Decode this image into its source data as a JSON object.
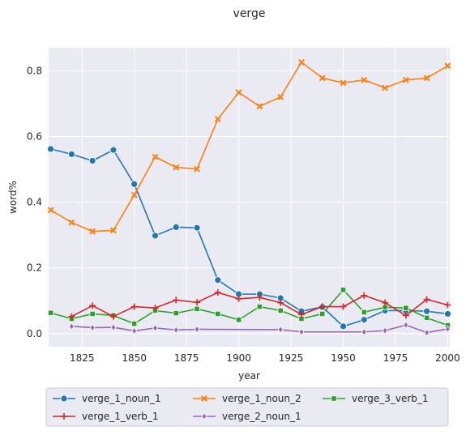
{
  "chart_data": {
    "type": "line",
    "title": "verge",
    "xlabel": "year",
    "ylabel": "word%",
    "xlim": [
      1809,
      2001
    ],
    "ylim": [
      -0.04,
      0.87
    ],
    "xticks": [
      1825,
      1850,
      1875,
      1900,
      1925,
      1950,
      1975,
      2000
    ],
    "yticks": [
      0.0,
      0.2,
      0.4,
      0.6,
      0.8
    ],
    "grid": true,
    "legend_position": "bottom-outside",
    "series": [
      {
        "name": "verge_1_noun_1",
        "color": "#1f77b4",
        "marker": "circle",
        "points": [
          [
            1810,
            0.562
          ],
          [
            1820,
            0.546
          ],
          [
            1830,
            0.526
          ],
          [
            1840,
            0.559
          ],
          [
            1850,
            0.455
          ],
          [
            1860,
            0.298
          ],
          [
            1870,
            0.324
          ],
          [
            1880,
            0.322
          ],
          [
            1890,
            0.163
          ],
          [
            1900,
            0.12
          ],
          [
            1910,
            0.12
          ],
          [
            1920,
            0.108
          ],
          [
            1930,
            0.068
          ],
          [
            1940,
            0.081
          ],
          [
            1950,
            0.022
          ],
          [
            1960,
            0.042
          ],
          [
            1970,
            0.07
          ],
          [
            1980,
            0.07
          ],
          [
            1990,
            0.068
          ],
          [
            2000,
            0.06
          ]
        ]
      },
      {
        "name": "verge_1_noun_2",
        "color": "#ff7f0e",
        "marker": "x",
        "points": [
          [
            1810,
            0.376
          ],
          [
            1820,
            0.338
          ],
          [
            1830,
            0.311
          ],
          [
            1840,
            0.314
          ],
          [
            1850,
            0.422
          ],
          [
            1860,
            0.538
          ],
          [
            1870,
            0.506
          ],
          [
            1880,
            0.501
          ],
          [
            1890,
            0.653
          ],
          [
            1900,
            0.734
          ],
          [
            1910,
            0.692
          ],
          [
            1920,
            0.72
          ],
          [
            1930,
            0.826
          ],
          [
            1940,
            0.778
          ],
          [
            1950,
            0.763
          ],
          [
            1960,
            0.772
          ],
          [
            1970,
            0.748
          ],
          [
            1980,
            0.772
          ],
          [
            1990,
            0.778
          ],
          [
            2000,
            0.815
          ]
        ]
      },
      {
        "name": "verge_3_verb_1",
        "color": "#2ca02c",
        "marker": "square",
        "points": [
          [
            1810,
            0.063
          ],
          [
            1820,
            0.045
          ],
          [
            1830,
            0.06
          ],
          [
            1840,
            0.055
          ],
          [
            1850,
            0.03
          ],
          [
            1860,
            0.07
          ],
          [
            1870,
            0.062
          ],
          [
            1880,
            0.075
          ],
          [
            1890,
            0.06
          ],
          [
            1900,
            0.042
          ],
          [
            1910,
            0.082
          ],
          [
            1920,
            0.07
          ],
          [
            1930,
            0.045
          ],
          [
            1940,
            0.06
          ],
          [
            1950,
            0.133
          ],
          [
            1960,
            0.065
          ],
          [
            1970,
            0.08
          ],
          [
            1980,
            0.078
          ],
          [
            1990,
            0.048
          ],
          [
            2000,
            0.025
          ]
        ]
      },
      {
        "name": "verge_1_verb_1",
        "color": "#d62728",
        "marker": "plus",
        "points": [
          [
            1820,
            0.052
          ],
          [
            1830,
            0.085
          ],
          [
            1840,
            0.052
          ],
          [
            1850,
            0.082
          ],
          [
            1860,
            0.078
          ],
          [
            1870,
            0.102
          ],
          [
            1880,
            0.095
          ],
          [
            1890,
            0.125
          ],
          [
            1900,
            0.106
          ],
          [
            1910,
            0.11
          ],
          [
            1920,
            0.094
          ],
          [
            1930,
            0.058
          ],
          [
            1940,
            0.082
          ],
          [
            1950,
            0.082
          ],
          [
            1960,
            0.116
          ],
          [
            1970,
            0.094
          ],
          [
            1980,
            0.055
          ],
          [
            1990,
            0.104
          ],
          [
            2000,
            0.087
          ]
        ]
      },
      {
        "name": "verge_2_noun_1",
        "color": "#9467bd",
        "marker": "diamond",
        "points": [
          [
            1820,
            0.022
          ],
          [
            1830,
            0.018
          ],
          [
            1840,
            0.019
          ],
          [
            1850,
            0.008
          ],
          [
            1860,
            0.017
          ],
          [
            1870,
            0.011
          ],
          [
            1880,
            0.013
          ],
          [
            1920,
            0.012
          ],
          [
            1930,
            0.005
          ],
          [
            1960,
            0.005
          ],
          [
            1970,
            0.009
          ],
          [
            1980,
            0.026
          ],
          [
            1990,
            0.003
          ],
          [
            2000,
            0.014
          ]
        ]
      }
    ]
  }
}
